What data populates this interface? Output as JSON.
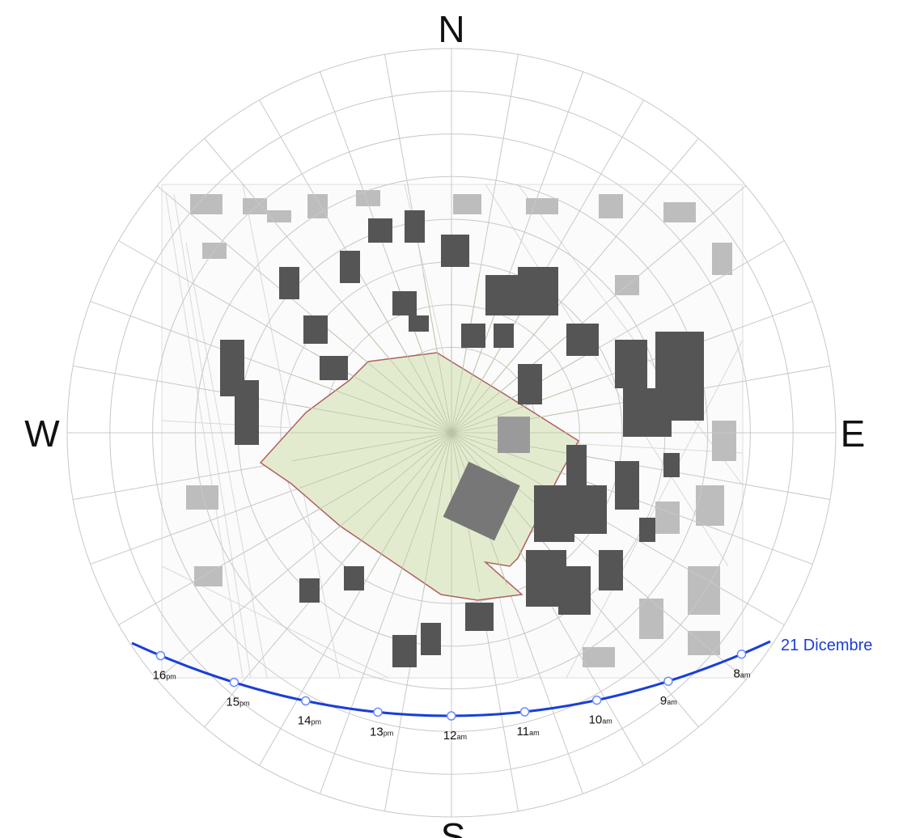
{
  "diagram": {
    "compass": {
      "north": "N",
      "south": "S",
      "west": "W",
      "east": "E"
    },
    "sun_path": {
      "label": "21 Dicembre",
      "color": "#1a3fd6",
      "hours": [
        {
          "num": "16",
          "suffix": "pm"
        },
        {
          "num": "15",
          "suffix": "pm"
        },
        {
          "num": "14",
          "suffix": "pm"
        },
        {
          "num": "13",
          "suffix": "pm"
        },
        {
          "num": "12",
          "suffix": "am"
        },
        {
          "num": "11",
          "suffix": "am"
        },
        {
          "num": "10",
          "suffix": "am"
        },
        {
          "num": "9",
          "suffix": "am"
        },
        {
          "num": "8",
          "suffix": "am"
        }
      ]
    },
    "colors": {
      "grid": "#c8c8c8",
      "site_fill": "#e3ebcf",
      "site_outline": "#b06060",
      "building": "#555555",
      "building_light": "#9a9a9a"
    }
  }
}
